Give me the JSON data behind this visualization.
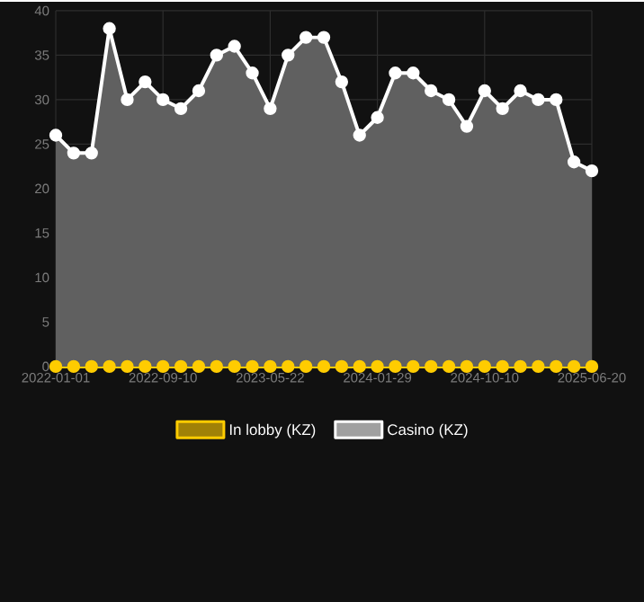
{
  "chart_data": {
    "type": "area",
    "categories": [
      "2022-01-01",
      null,
      null,
      null,
      null,
      null,
      "2022-09-10",
      null,
      null,
      null,
      null,
      null,
      "2023-05-22",
      null,
      null,
      null,
      null,
      null,
      "2024-01-29",
      null,
      null,
      null,
      null,
      null,
      "2024-10-10",
      null,
      null,
      null,
      null,
      null,
      "2025-06-20"
    ],
    "series": [
      {
        "name": "In lobby (KZ)",
        "type": "line",
        "color": "#ffcc00",
        "values": [
          0,
          0,
          0,
          0,
          0,
          0,
          0,
          0,
          0,
          0,
          0,
          0,
          0,
          0,
          0,
          0,
          0,
          0,
          0,
          0,
          0,
          0,
          0,
          0,
          0,
          0,
          0,
          0,
          0,
          0,
          0
        ]
      },
      {
        "name": "Casino (KZ)",
        "color": "#ffffff",
        "values": [
          26,
          24,
          24,
          38,
          30,
          32,
          30,
          29,
          31,
          35,
          36,
          33,
          29,
          35,
          37,
          37,
          32,
          26,
          28,
          33,
          33,
          31,
          30,
          27,
          31,
          29,
          31,
          30,
          30,
          23,
          22
        ]
      }
    ],
    "ylim": [
      0,
      40
    ],
    "yticks": [
      0,
      5,
      10,
      15,
      20,
      25,
      30,
      35,
      40
    ],
    "grid": true,
    "legend": "bottom",
    "marker": "circle",
    "line_style": "solid"
  }
}
